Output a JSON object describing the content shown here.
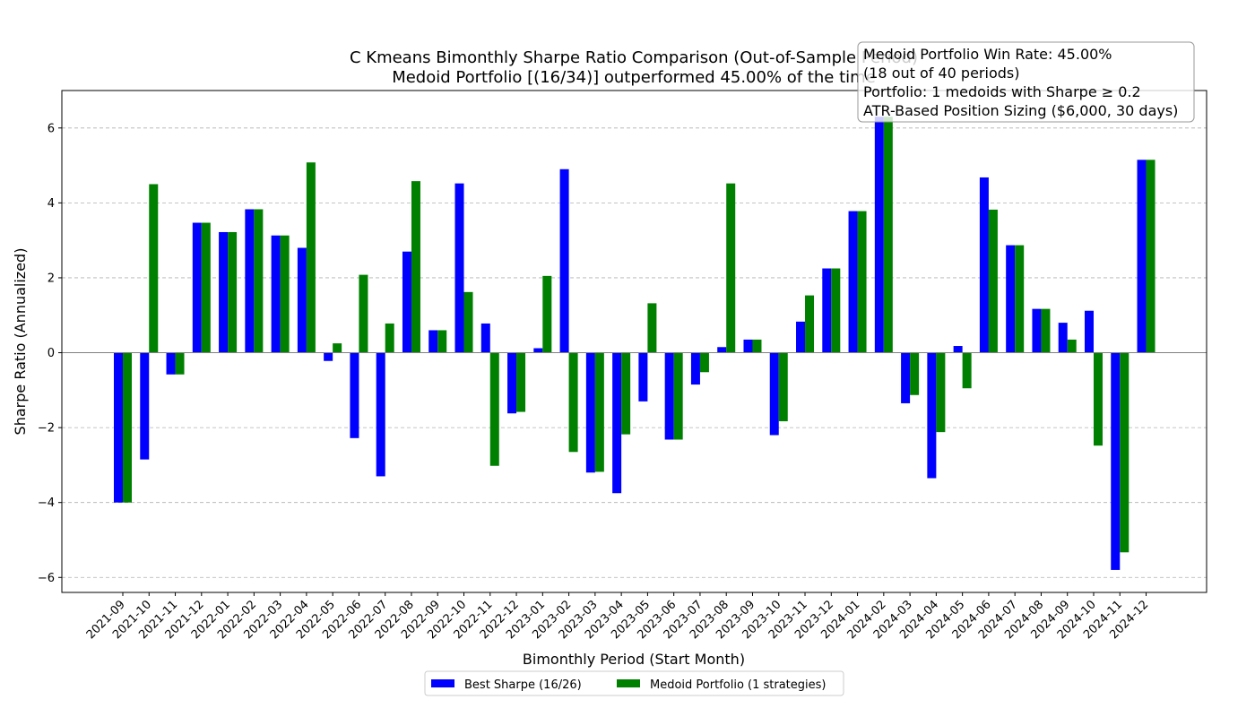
{
  "chart_data": {
    "type": "bar",
    "title_lines": [
      "C Kmeans Bimonthly Sharpe Ratio Comparison (Out-of-Sample Period)",
      "Medoid Portfolio [(16/34)] outperformed 45.00% of the time"
    ],
    "xlabel": "Bimonthly Period (Start Month)",
    "ylabel": "Sharpe Ratio (Annualized)",
    "ylim": [
      -6.4,
      7.0
    ],
    "yticks": [
      -6,
      -4,
      -2,
      0,
      2,
      4,
      6
    ],
    "ytick_labels": [
      "−6",
      "−4",
      "−2",
      "0",
      "2",
      "4",
      "6"
    ],
    "grid": "horizontal dashed",
    "legend_position": "bottom-center",
    "categories": [
      "2021-09",
      "2021-10",
      "2021-11",
      "2021-12",
      "2022-01",
      "2022-02",
      "2022-03",
      "2022-04",
      "2022-05",
      "2022-06",
      "2022-07",
      "2022-08",
      "2022-09",
      "2022-10",
      "2022-11",
      "2022-12",
      "2023-01",
      "2023-02",
      "2023-03",
      "2023-04",
      "2023-05",
      "2023-06",
      "2023-07",
      "2023-08",
      "2023-09",
      "2023-10",
      "2023-11",
      "2023-12",
      "2024-01",
      "2024-02",
      "2024-03",
      "2024-04",
      "2024-05",
      "2024-06",
      "2024-07",
      "2024-08",
      "2024-09",
      "2024-10",
      "2024-11",
      "2024-12"
    ],
    "series": [
      {
        "name": "Best Sharpe (16/26)",
        "color": "#0000ff",
        "values": [
          -4.0,
          -2.85,
          -0.58,
          3.47,
          3.22,
          3.83,
          3.13,
          2.8,
          -0.22,
          -2.28,
          -3.3,
          2.7,
          0.6,
          4.52,
          0.78,
          -1.62,
          0.12,
          4.9,
          -3.2,
          -3.75,
          -1.3,
          -2.32,
          -0.85,
          0.15,
          0.35,
          -2.2,
          0.83,
          2.25,
          3.78,
          6.3,
          -1.35,
          -3.35,
          0.18,
          4.68,
          2.87,
          1.17,
          0.8,
          1.12,
          -5.8,
          5.15
        ]
      },
      {
        "name": "Medoid Portfolio (1 strategies)",
        "color": "#008000",
        "values": [
          -4.0,
          4.5,
          -0.58,
          3.47,
          3.22,
          3.83,
          3.13,
          5.08,
          0.25,
          2.08,
          0.78,
          4.58,
          0.6,
          1.62,
          -3.02,
          -1.58,
          2.05,
          -2.65,
          -3.18,
          -2.18,
          1.32,
          -2.32,
          -0.52,
          4.52,
          0.35,
          -1.83,
          1.53,
          2.25,
          3.78,
          6.3,
          -1.13,
          -2.12,
          -0.95,
          3.82,
          2.87,
          1.17,
          0.35,
          -2.48,
          -5.33,
          5.15
        ]
      }
    ],
    "annotation_lines": [
      "Medoid Portfolio Win Rate: 45.00%",
      "(18 out of 40 periods)",
      "Portfolio: 1 medoids with Sharpe ≥ 0.2",
      "ATR-Based Position Sizing ($6,000, 30 days)"
    ]
  }
}
